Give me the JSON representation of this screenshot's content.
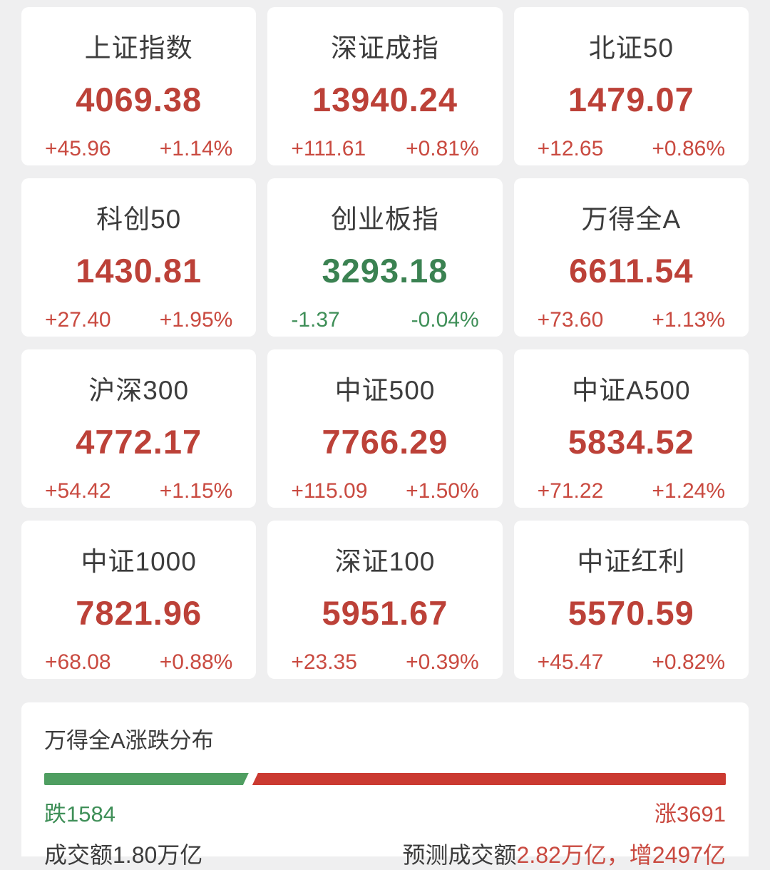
{
  "colors": {
    "up": "#bc4138",
    "up_light": "#c94a40",
    "down": "#3b8252",
    "down_light": "#3f8f58",
    "bar_up": "#cb3a31",
    "bar_down": "#4f9e61",
    "text": "#3c3c3c",
    "page_bg": "#efeff0"
  },
  "indices": [
    {
      "name": "上证指数",
      "value": "4069.38",
      "change": "+45.96",
      "pct": "+1.14%",
      "dir": "up"
    },
    {
      "name": "深证成指",
      "value": "13940.24",
      "change": "+111.61",
      "pct": "+0.81%",
      "dir": "up"
    },
    {
      "name": "北证50",
      "value": "1479.07",
      "change": "+12.65",
      "pct": "+0.86%",
      "dir": "up"
    },
    {
      "name": "科创50",
      "value": "1430.81",
      "change": "+27.40",
      "pct": "+1.95%",
      "dir": "up"
    },
    {
      "name": "创业板指",
      "value": "3293.18",
      "change": "-1.37",
      "pct": "-0.04%",
      "dir": "down"
    },
    {
      "name": "万得全A",
      "value": "6611.54",
      "change": "+73.60",
      "pct": "+1.13%",
      "dir": "up"
    },
    {
      "name": "沪深300",
      "value": "4772.17",
      "change": "+54.42",
      "pct": "+1.15%",
      "dir": "up"
    },
    {
      "name": "中证500",
      "value": "7766.29",
      "change": "+115.09",
      "pct": "+1.50%",
      "dir": "up"
    },
    {
      "name": "中证A500",
      "value": "5834.52",
      "change": "+71.22",
      "pct": "+1.24%",
      "dir": "up"
    },
    {
      "name": "中证1000",
      "value": "7821.96",
      "change": "+68.08",
      "pct": "+0.88%",
      "dir": "up"
    },
    {
      "name": "深证100",
      "value": "5951.67",
      "change": "+23.35",
      "pct": "+0.39%",
      "dir": "up"
    },
    {
      "name": "中证红利",
      "value": "5570.59",
      "change": "+45.47",
      "pct": "+0.82%",
      "dir": "up"
    }
  ],
  "distribution": {
    "title": "万得全A涨跌分布",
    "down_count": 1584,
    "up_count": 3691,
    "down_label": "跌1584",
    "up_label": "涨3691",
    "turnover": "成交额1.80万亿",
    "forecast_prefix": "预测成交额",
    "forecast_value": "2.82万亿，增2497亿"
  }
}
